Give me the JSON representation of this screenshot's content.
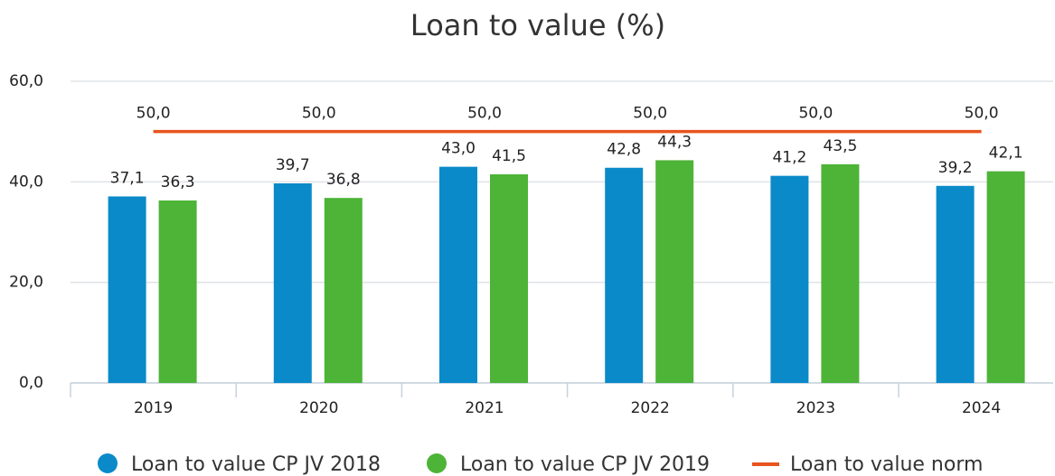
{
  "chart_data": {
    "type": "bar",
    "title": "Loan to value (%)",
    "categories": [
      "2019",
      "2020",
      "2021",
      "2022",
      "2023",
      "2024"
    ],
    "series": [
      {
        "name": "Loan to value CP JV 2018",
        "color": "#0a8ac9",
        "type": "bar",
        "values": [
          37.1,
          39.7,
          43.0,
          42.8,
          41.2,
          39.2
        ],
        "value_labels": [
          "37,1",
          "39,7",
          "43,0",
          "42,8",
          "41,2",
          "39,2"
        ]
      },
      {
        "name": "Loan to value CP JV 2019",
        "color": "#4db437",
        "type": "bar",
        "values": [
          36.3,
          36.8,
          41.5,
          44.3,
          43.5,
          42.1
        ],
        "value_labels": [
          "36,3",
          "36,8",
          "41,5",
          "44,3",
          "43,5",
          "42,1"
        ]
      },
      {
        "name": "Loan to value norm",
        "color": "#e8541e",
        "type": "line",
        "values": [
          50.0,
          50.0,
          50.0,
          50.0,
          50.0,
          50.0
        ],
        "value_labels": [
          "50,0",
          "50,0",
          "50,0",
          "50,0",
          "50,0",
          "50,0"
        ]
      }
    ],
    "ylim": [
      0,
      60
    ],
    "yticks": [
      {
        "value": 0,
        "label": "0,0"
      },
      {
        "value": 20,
        "label": "20,0"
      },
      {
        "value": 40,
        "label": "40,0"
      },
      {
        "value": 60,
        "label": "60,0"
      }
    ],
    "grid": true,
    "legend": "bottom"
  }
}
